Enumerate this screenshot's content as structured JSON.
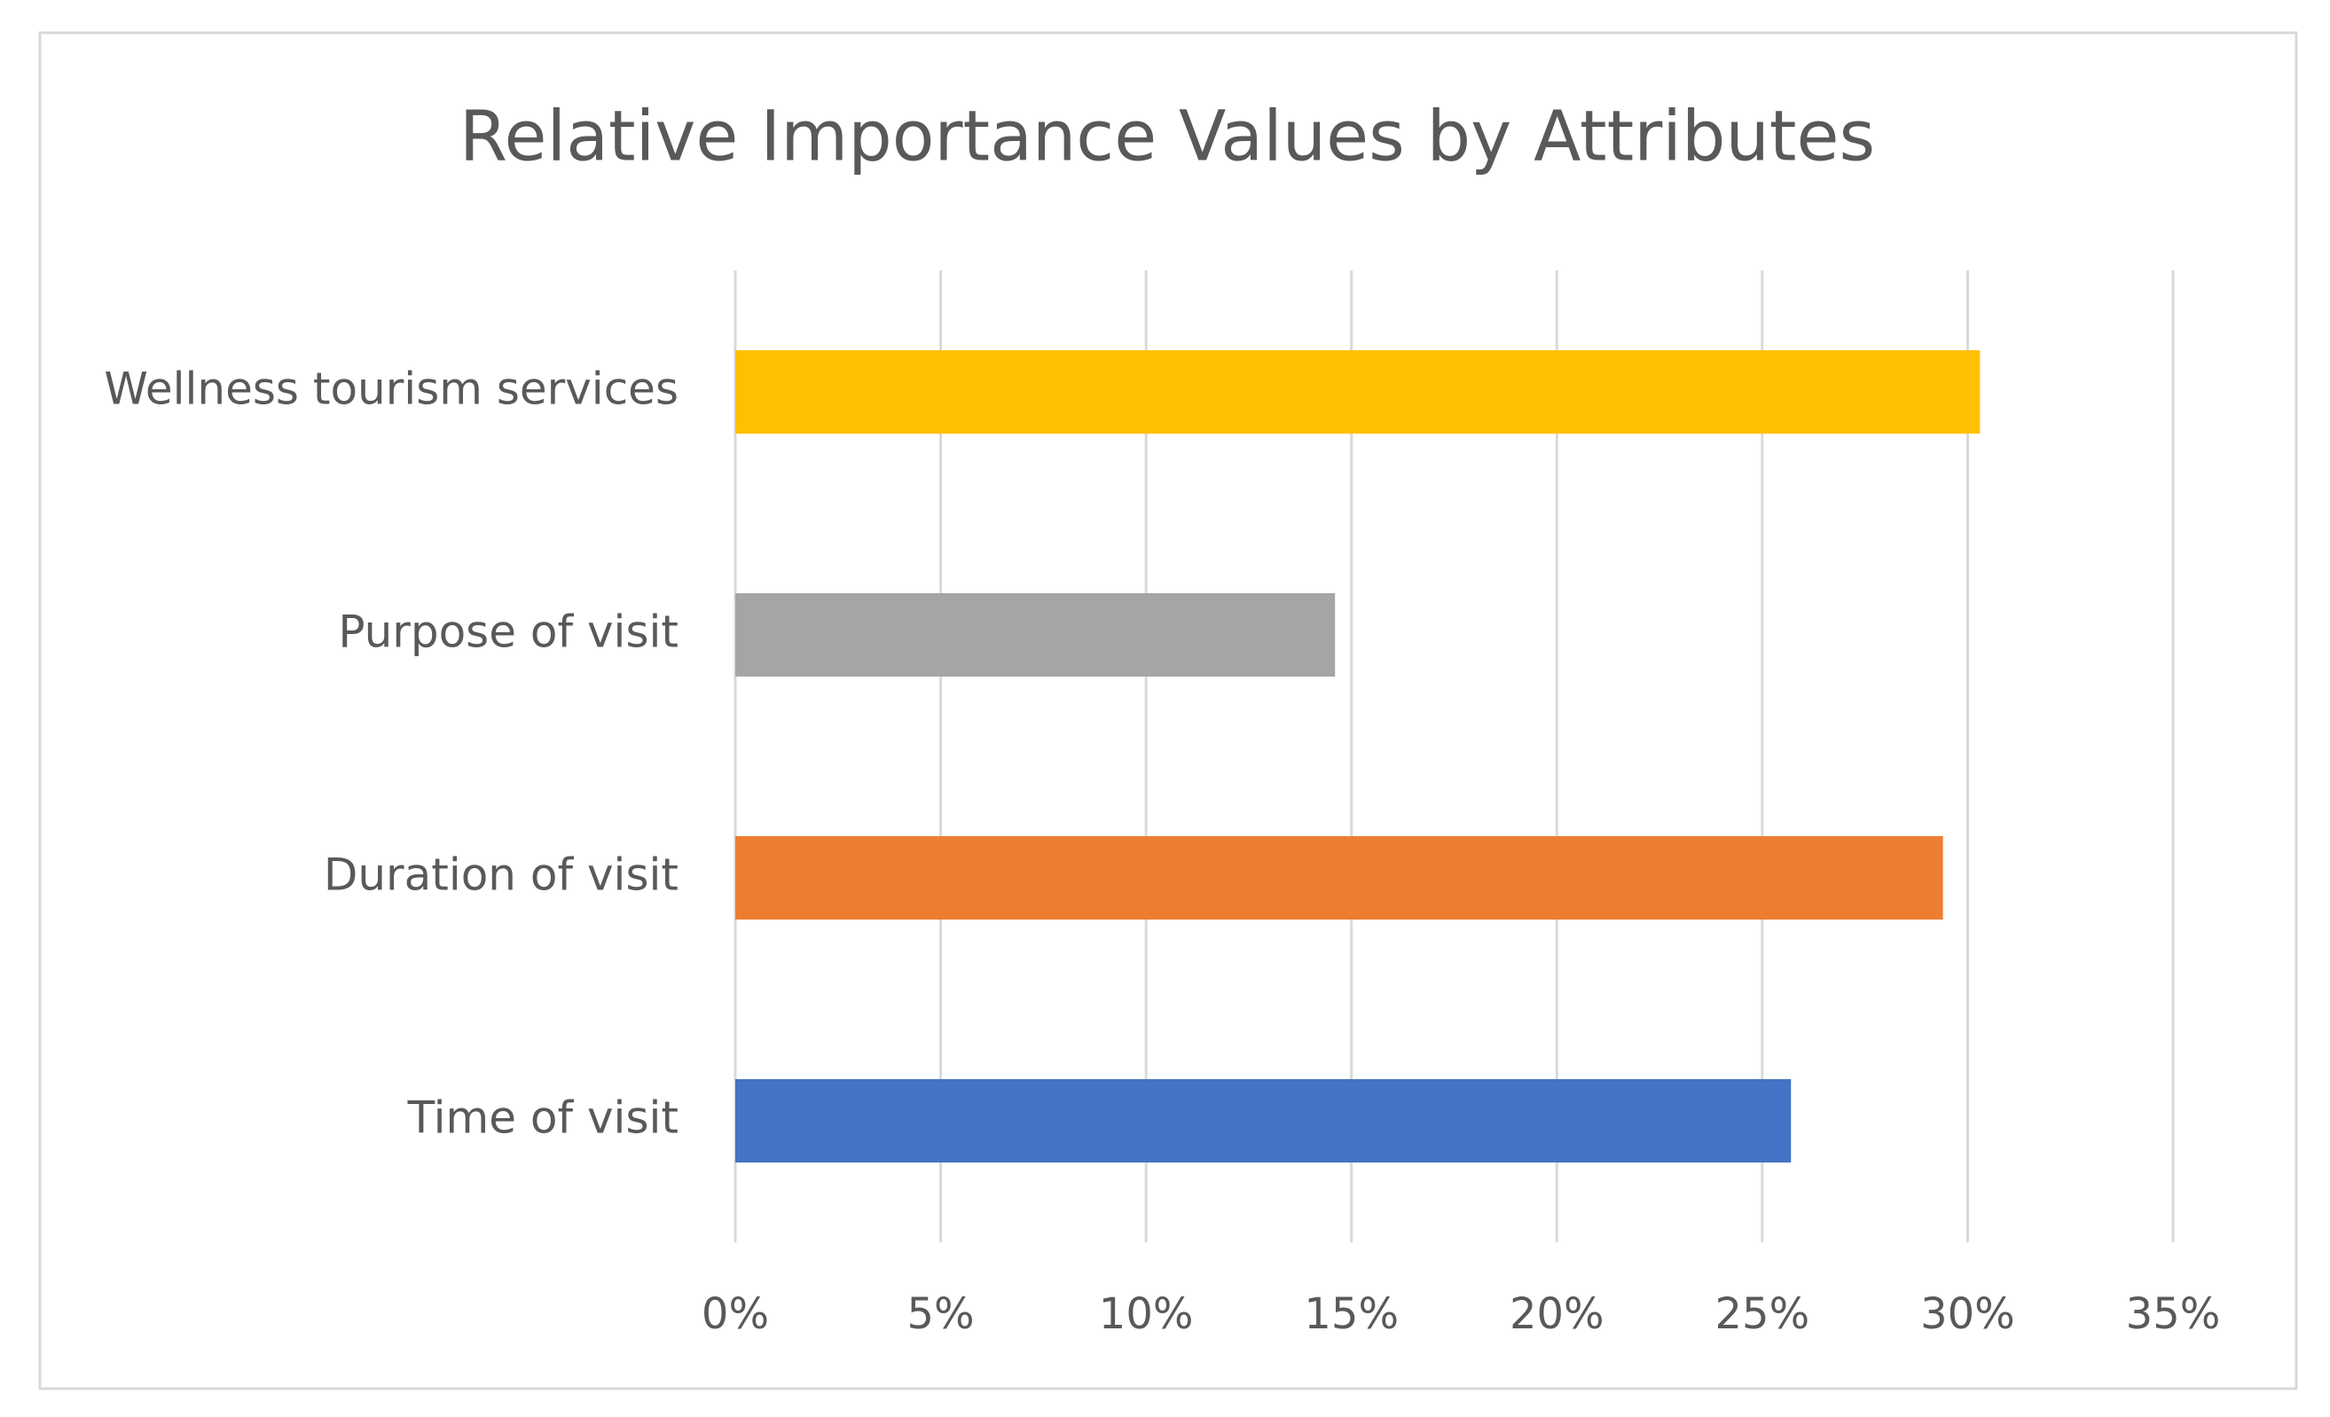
{
  "chart_data": {
    "type": "bar",
    "orientation": "horizontal",
    "title": "Relative Importance Values by Attributes",
    "categories": [
      "Wellness tourism services",
      "Purpose of visit",
      "Duration of visit",
      "Time of visit"
    ],
    "values": [
      30.3,
      14.6,
      29.4,
      25.7
    ],
    "colors": [
      "#ffc000",
      "#a5a5a5",
      "#ed7d31",
      "#4472c4"
    ],
    "xlim": [
      0,
      35
    ],
    "xticks": [
      {
        "value": 0,
        "label": "0%"
      },
      {
        "value": 5,
        "label": "5%"
      },
      {
        "value": 10,
        "label": "10%"
      },
      {
        "value": 15,
        "label": "15%"
      },
      {
        "value": 20,
        "label": "20%"
      },
      {
        "value": 25,
        "label": "25%"
      },
      {
        "value": 30,
        "label": "30%"
      },
      {
        "value": 35,
        "label": "35%"
      }
    ],
    "grid": true
  }
}
